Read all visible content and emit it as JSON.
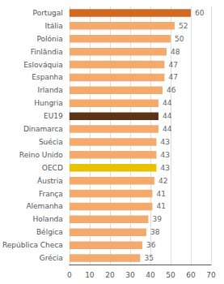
{
  "chart_data": {
    "type": "bar",
    "orientation": "horizontal",
    "categories": [
      "Portugal",
      "Itália",
      "Polónia",
      "Finlândia",
      "Eslováquia",
      "Espanha",
      "Irlanda",
      "Hungria",
      "EU19",
      "Dinamarca",
      "Suécia",
      "Reino Unido",
      "OECD",
      "Áustria",
      "França",
      "Alemanha",
      "Holanda",
      "Bélgica",
      "República Checa",
      "Grécia"
    ],
    "values": [
      60,
      52,
      50,
      48,
      47,
      47,
      46,
      44,
      44,
      44,
      43,
      43,
      43,
      42,
      41,
      41,
      39,
      38,
      36,
      35
    ],
    "colors": [
      "#d2691e",
      "#f4a96d",
      "#f4a96d",
      "#f4a96d",
      "#f4a96d",
      "#f4a96d",
      "#f4a96d",
      "#f4a96d",
      "#5c3317",
      "#f4a96d",
      "#f4a96d",
      "#f4a96d",
      "#e8c400",
      "#f4a96d",
      "#f4a96d",
      "#f4a96d",
      "#f4a96d",
      "#f4a96d",
      "#f4a96d",
      "#f4a96d"
    ],
    "xlim": [
      0,
      70
    ],
    "xticks": [
      0,
      10,
      20,
      30,
      40,
      50,
      60,
      70
    ],
    "grid": true,
    "data_labels": true
  }
}
